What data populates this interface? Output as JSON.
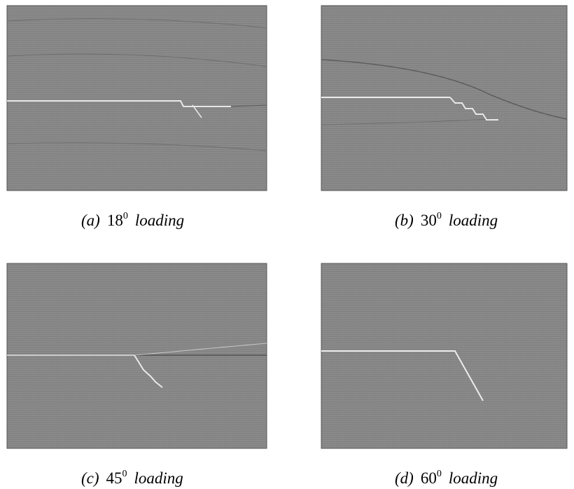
{
  "figure": {
    "panels": [
      {
        "label": "(a)",
        "angle": "18",
        "degree": "0",
        "word": "loading"
      },
      {
        "label": "(b)",
        "angle": "30",
        "degree": "0",
        "word": "loading"
      },
      {
        "label": "(c)",
        "angle": "45",
        "degree": "0",
        "word": "loading"
      },
      {
        "label": "(d)",
        "angle": "60",
        "degree": "0",
        "word": "loading"
      }
    ]
  }
}
